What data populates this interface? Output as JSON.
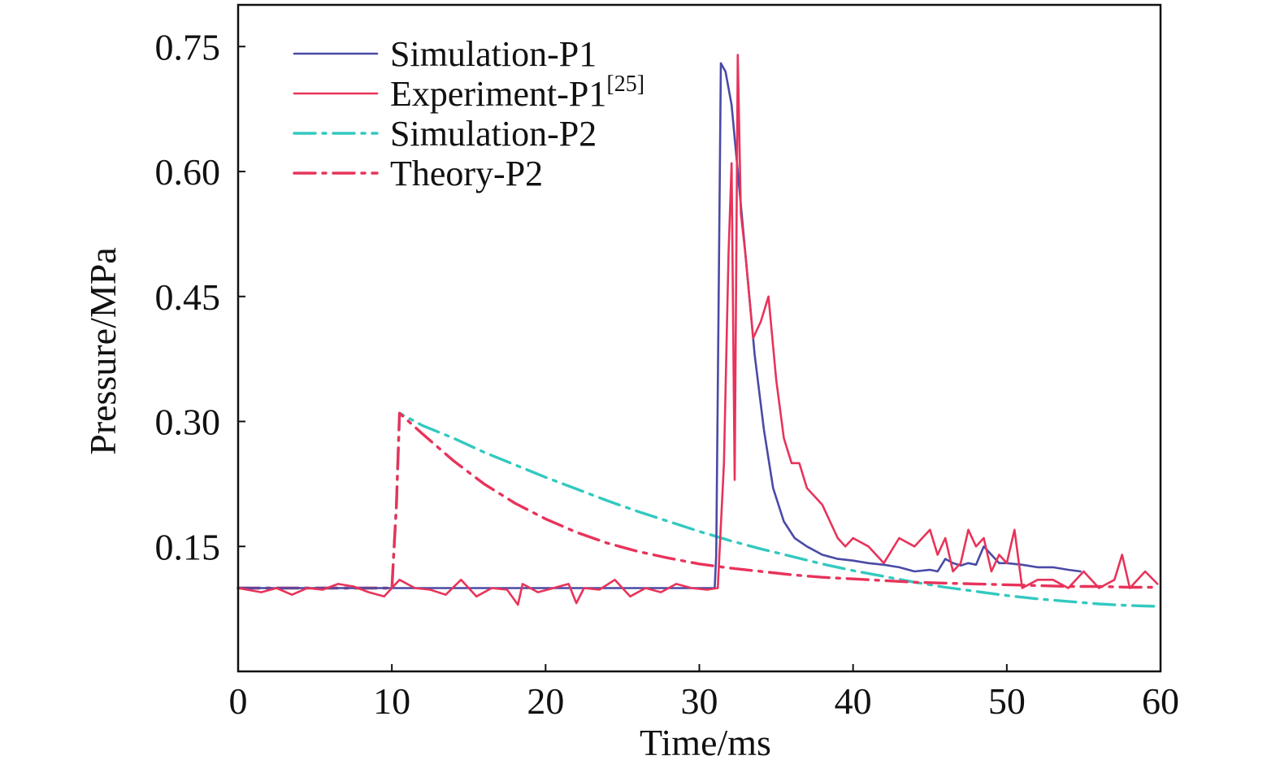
{
  "chart_data": {
    "type": "line",
    "xlabel": "Time/ms",
    "ylabel": "Pressure/MPa",
    "xlim": [
      0,
      60
    ],
    "ylim": [
      0,
      0.8
    ],
    "xticks": [
      0,
      10,
      20,
      30,
      40,
      50,
      60
    ],
    "xtick_labels": [
      "0",
      "10",
      "20",
      "30",
      "40",
      "50",
      "60"
    ],
    "yticks": [
      0.15,
      0.3,
      0.45,
      0.6,
      0.75
    ],
    "ytick_labels": [
      "0.15",
      "0.30",
      "0.45",
      "0.60",
      "0.75"
    ],
    "grid": false,
    "legend_position": "top-left",
    "series": [
      {
        "name": "Simulation-P1",
        "style": "solid",
        "color": "#4a4aa6",
        "x": [
          0,
          31.0,
          31.1,
          31.4,
          31.7,
          32.1,
          32.5,
          33.0,
          33.6,
          34.2,
          34.8,
          35.5,
          36.2,
          37.0,
          38.0,
          39.0,
          40.0,
          41.0,
          42.0,
          43.0,
          44.0,
          45.0,
          45.5,
          46.0,
          46.5,
          47.0,
          47.5,
          48.0,
          48.5,
          49.0,
          49.5,
          50.0,
          51.0,
          52.0,
          53.0,
          54.0,
          54.8
        ],
        "y": [
          0.1,
          0.1,
          0.14,
          0.73,
          0.72,
          0.68,
          0.6,
          0.5,
          0.38,
          0.29,
          0.22,
          0.18,
          0.16,
          0.15,
          0.14,
          0.135,
          0.133,
          0.13,
          0.128,
          0.125,
          0.12,
          0.122,
          0.12,
          0.135,
          0.13,
          0.127,
          0.13,
          0.128,
          0.15,
          0.14,
          0.13,
          0.13,
          0.128,
          0.125,
          0.125,
          0.122,
          0.12
        ]
      },
      {
        "name": "Experiment-P1",
        "name_superscript": "[25]",
        "style": "solid",
        "color": "#e8335a",
        "x": [
          0,
          1.5,
          2.5,
          3.5,
          4.5,
          5.5,
          6.5,
          7.5,
          8.5,
          9.5,
          10.5,
          11.5,
          12.5,
          13.5,
          14.5,
          15.5,
          16.5,
          17.5,
          18.2,
          18.5,
          19.5,
          20.5,
          21.5,
          22.0,
          22.5,
          23.5,
          24.5,
          25.5,
          26.5,
          27.5,
          28.5,
          29.5,
          30.5,
          31.2,
          31.6,
          31.9,
          32.1,
          32.3,
          32.5,
          32.7,
          33.0,
          33.5,
          34.0,
          34.5,
          35.0,
          35.5,
          36.0,
          36.5,
          37.0,
          37.5,
          38.0,
          38.5,
          39.0,
          39.5,
          40.0,
          41.0,
          42.0,
          43.0,
          44.0,
          45.0,
          45.5,
          46.0,
          46.5,
          47.0,
          47.5,
          48.0,
          48.5,
          49.0,
          49.5,
          50.0,
          50.5,
          51.0,
          52.0,
          53.0,
          54.0,
          55.0,
          56.0,
          57.0,
          57.5,
          58.0,
          59.0,
          59.8
        ],
        "y": [
          0.1,
          0.095,
          0.1,
          0.092,
          0.1,
          0.098,
          0.105,
          0.102,
          0.095,
          0.09,
          0.11,
          0.1,
          0.098,
          0.092,
          0.11,
          0.09,
          0.1,
          0.098,
          0.08,
          0.105,
          0.095,
          0.1,
          0.105,
          0.082,
          0.1,
          0.098,
          0.11,
          0.09,
          0.1,
          0.095,
          0.105,
          0.1,
          0.098,
          0.1,
          0.25,
          0.5,
          0.61,
          0.23,
          0.74,
          0.55,
          0.5,
          0.4,
          0.42,
          0.45,
          0.35,
          0.28,
          0.25,
          0.25,
          0.22,
          0.21,
          0.2,
          0.18,
          0.16,
          0.15,
          0.16,
          0.15,
          0.13,
          0.16,
          0.15,
          0.17,
          0.14,
          0.16,
          0.12,
          0.13,
          0.17,
          0.15,
          0.16,
          0.12,
          0.14,
          0.13,
          0.17,
          0.1,
          0.11,
          0.11,
          0.1,
          0.12,
          0.1,
          0.11,
          0.14,
          0.1,
          0.12,
          0.105
        ]
      },
      {
        "name": "Simulation-P2",
        "style": "dash-dot",
        "color": "#33c9c0",
        "x": [
          0,
          10.0,
          10.3,
          10.5,
          12,
          14,
          16,
          18,
          20,
          22,
          24,
          26,
          28,
          30,
          32,
          34,
          36,
          38,
          40,
          42,
          44,
          46,
          48,
          50,
          52,
          54,
          56,
          58,
          59.8
        ],
        "y": [
          0.1,
          0.1,
          0.2,
          0.31,
          0.295,
          0.28,
          0.263,
          0.248,
          0.233,
          0.219,
          0.205,
          0.192,
          0.18,
          0.168,
          0.157,
          0.147,
          0.138,
          0.129,
          0.121,
          0.114,
          0.107,
          0.101,
          0.096,
          0.091,
          0.087,
          0.084,
          0.081,
          0.079,
          0.078
        ]
      },
      {
        "name": "Theory-P2",
        "style": "dash-dot",
        "color": "#e8335a",
        "x": [
          0,
          10.0,
          10.3,
          10.5,
          12,
          14,
          16,
          18,
          20,
          22,
          24,
          26,
          28,
          30,
          32,
          34,
          36,
          38,
          40,
          42,
          44,
          46,
          48,
          50,
          52,
          54,
          56,
          58,
          59.8
        ],
        "y": [
          0.1,
          0.1,
          0.2,
          0.31,
          0.285,
          0.253,
          0.225,
          0.202,
          0.183,
          0.167,
          0.154,
          0.144,
          0.136,
          0.129,
          0.124,
          0.12,
          0.116,
          0.113,
          0.111,
          0.109,
          0.107,
          0.106,
          0.105,
          0.104,
          0.103,
          0.102,
          0.102,
          0.101,
          0.101
        ]
      }
    ]
  }
}
